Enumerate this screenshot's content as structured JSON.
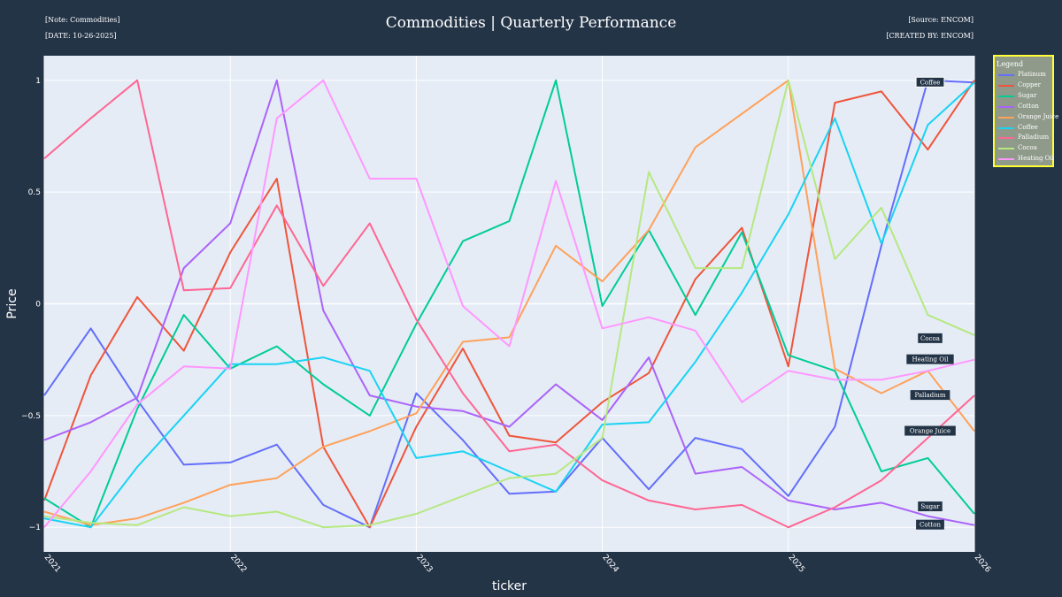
{
  "header": {
    "note": "[Note: Commodities]",
    "date": "[DATE: 10-26-2025]",
    "source": "[Source: ENCOM]",
    "created_by": "[CREATED BY: ENCOM]",
    "title": "Commodities | Quarterly Performance"
  },
  "legend": {
    "title": "Legend"
  },
  "colors": {
    "background": "#243447",
    "plot_bg": "#e5ecf6",
    "legend_bg": "#8f9a8a",
    "legend_border": "#ffff33"
  },
  "chart_data": {
    "type": "line",
    "title": "Commodities | Quarterly Performance",
    "xlabel": "ticker",
    "ylabel": "Price",
    "x": [
      "2021 Q1",
      "2021 Q2",
      "2021 Q3",
      "2021 Q4",
      "2022 Q1",
      "2022 Q2",
      "2022 Q3",
      "2022 Q4",
      "2023 Q1",
      "2023 Q2",
      "2023 Q3",
      "2023 Q4",
      "2024 Q1",
      "2024 Q2",
      "2024 Q3",
      "2024 Q4",
      "2025 Q1",
      "2025 Q2",
      "2025 Q3",
      "2025 Q4",
      "2026 Q1"
    ],
    "x_ticks": [
      "2021",
      "2022",
      "2023",
      "2024",
      "2025",
      "2026"
    ],
    "y_ticks": [
      -1,
      -0.5,
      0,
      0.5,
      1
    ],
    "y_tick_labels": [
      "−1",
      "−0.5",
      "0",
      "0.5",
      "1"
    ],
    "ylim": [
      -1.11,
      1.11
    ],
    "grid": true,
    "legend_position": "top-right",
    "series": [
      {
        "name": "Platinum",
        "color": "#636efa",
        "values": [
          -0.41,
          -0.11,
          -0.43,
          -0.72,
          -0.71,
          -0.63,
          -0.9,
          -1.0,
          -0.4,
          -0.61,
          -0.85,
          -0.84,
          -0.6,
          -0.83,
          -0.6,
          -0.65,
          -0.86,
          -0.55,
          0.26,
          1.0,
          0.99
        ]
      },
      {
        "name": "Copper",
        "color": "#ef553b",
        "values": [
          -0.88,
          -0.32,
          0.03,
          -0.21,
          0.23,
          0.56,
          -0.64,
          -1.0,
          -0.55,
          -0.2,
          -0.59,
          -0.62,
          -0.44,
          -0.31,
          0.11,
          0.34,
          -0.28,
          0.9,
          0.95,
          0.69,
          1.0
        ]
      },
      {
        "name": "Sugar",
        "color": "#00cc96",
        "values": [
          -0.87,
          -1.0,
          -0.47,
          -0.05,
          -0.29,
          -0.19,
          -0.36,
          -0.5,
          -0.09,
          0.28,
          0.37,
          1.0,
          -0.01,
          0.33,
          -0.05,
          0.32,
          -0.23,
          -0.3,
          -0.75,
          -0.69,
          -0.94
        ]
      },
      {
        "name": "Cotton",
        "color": "#ab63fa",
        "values": [
          -0.61,
          -0.53,
          -0.42,
          0.16,
          0.36,
          1.0,
          -0.03,
          -0.41,
          -0.46,
          -0.48,
          -0.55,
          -0.36,
          -0.52,
          -0.24,
          -0.76,
          -0.73,
          -0.88,
          -0.92,
          -0.89,
          -0.95,
          -0.99
        ]
      },
      {
        "name": "Orange Juice",
        "color": "#ffa15a",
        "values": [
          -0.93,
          -0.99,
          -0.96,
          -0.89,
          -0.81,
          -0.78,
          -0.64,
          -0.57,
          -0.49,
          -0.17,
          -0.15,
          0.26,
          0.1,
          0.33,
          0.7,
          0.85,
          1.0,
          -0.29,
          -0.4,
          -0.3,
          -0.57
        ]
      },
      {
        "name": "Coffee",
        "color": "#19d3f3",
        "values": [
          -0.96,
          -1.0,
          -0.73,
          -0.5,
          -0.27,
          -0.27,
          -0.24,
          -0.3,
          -0.69,
          -0.66,
          -0.75,
          -0.84,
          -0.54,
          -0.53,
          -0.26,
          0.05,
          0.4,
          0.83,
          0.27,
          0.8,
          0.99
        ]
      },
      {
        "name": "Palladium",
        "color": "#ff6692",
        "values": [
          0.65,
          0.83,
          1.0,
          0.06,
          0.07,
          0.44,
          0.08,
          0.36,
          -0.07,
          -0.4,
          -0.66,
          -0.63,
          -0.79,
          -0.88,
          -0.92,
          -0.9,
          -1.0,
          -0.91,
          -0.79,
          -0.6,
          -0.41
        ]
      },
      {
        "name": "Cocoa",
        "color": "#b6e880",
        "values": [
          -0.95,
          -0.98,
          -0.99,
          -0.91,
          -0.95,
          -0.93,
          -1.0,
          -0.99,
          -0.94,
          -0.86,
          -0.78,
          -0.76,
          -0.6,
          0.59,
          0.16,
          0.16,
          1.0,
          0.2,
          0.43,
          -0.05,
          -0.14
        ]
      },
      {
        "name": "Heating Oil",
        "color": "#ff97ff",
        "values": [
          -1.0,
          -0.75,
          -0.45,
          -0.28,
          -0.29,
          0.83,
          1.0,
          0.56,
          0.56,
          -0.01,
          -0.19,
          0.55,
          -0.11,
          -0.06,
          -0.12,
          -0.44,
          -0.3,
          -0.34,
          -0.34,
          -0.3,
          -0.25
        ]
      }
    ],
    "end_labels": [
      "Coffee",
      "Cocoa",
      "Heating Oil",
      "Palladium",
      "Orange Juice",
      "Sugar",
      "Cotton"
    ]
  }
}
